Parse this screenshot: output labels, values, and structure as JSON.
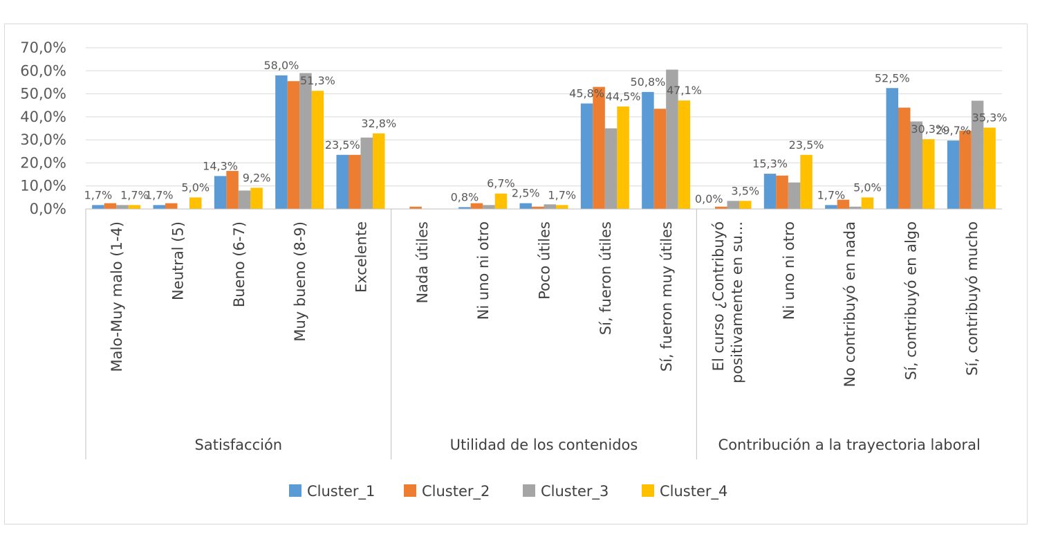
{
  "chart_data": {
    "type": "bar",
    "y_axis": {
      "ylim": [
        0,
        70
      ],
      "ticks": [
        "0,0%",
        "10,0%",
        "20,0%",
        "30,0%",
        "40,0%",
        "50,0%",
        "60,0%",
        "70,0%"
      ],
      "grid": true
    },
    "groups": [
      {
        "label": "Satisfacción",
        "categories": [
          "Malo-Muy malo (1-4)",
          "Neutral (5)",
          "Bueno (6-7)",
          "Muy bueno (8-9)",
          "Excelente"
        ]
      },
      {
        "label": "Utilidad de los contenidos",
        "categories": [
          "Nada útiles",
          "Ni uno ni otro",
          "Poco útiles",
          "Sí, fueron útiles",
          "Sí, fueron muy útiles"
        ]
      },
      {
        "label": "Contribución a la trayectoria laboral",
        "categories": [
          [
            "El curso ¿Contribuyó",
            "positivamente en su..."
          ],
          "Ni uno ni otro",
          "No contribuyó en nada",
          "Sí, contribuyó en algo",
          "Sí, contribuyó mucho"
        ]
      }
    ],
    "series": [
      {
        "name": "Cluster_1",
        "color": "#5B9BD5",
        "values": [
          1.7,
          1.7,
          14.3,
          58.0,
          23.5,
          0.0,
          0.8,
          2.5,
          45.8,
          50.8,
          0.0,
          15.3,
          1.7,
          52.5,
          29.7
        ],
        "labels": [
          "1,7%",
          "1,7%",
          "14,3%",
          "58,0%",
          "23,5%",
          "",
          "0,8%",
          "2,5%",
          "45,8%",
          "50,8%",
          "0,0%",
          "15,3%",
          "1,7%",
          "52,5%",
          "29,7%"
        ]
      },
      {
        "name": "Cluster_2",
        "color": "#ED7D31",
        "values": [
          2.5,
          2.5,
          16.5,
          55.5,
          23.5,
          1.0,
          2.5,
          1.0,
          53.0,
          43.5,
          1.0,
          14.5,
          4.0,
          44.0,
          34.0
        ],
        "labels": []
      },
      {
        "name": "Cluster_3",
        "color": "#A5A5A5",
        "values": [
          1.7,
          0.0,
          8.0,
          59.0,
          31.0,
          0.0,
          1.7,
          2.0,
          35.0,
          60.5,
          3.5,
          11.5,
          1.0,
          38.0,
          47.0
        ],
        "labels": []
      },
      {
        "name": "Cluster_4",
        "color": "#FFC000",
        "values": [
          1.7,
          5.0,
          9.2,
          51.3,
          32.8,
          0.0,
          6.7,
          1.7,
          44.5,
          47.1,
          3.5,
          23.5,
          5.0,
          30.3,
          35.3
        ],
        "labels": [
          "1,7%",
          "5,0%",
          "9,2%",
          "51,3%",
          "32,8%",
          "",
          "6,7%",
          "1,7%",
          "44,5%",
          "47,1%",
          "3,5%",
          "23,5%",
          "5,0%",
          "30,3%",
          "35,3%"
        ]
      }
    ],
    "legend_position": "bottom"
  }
}
